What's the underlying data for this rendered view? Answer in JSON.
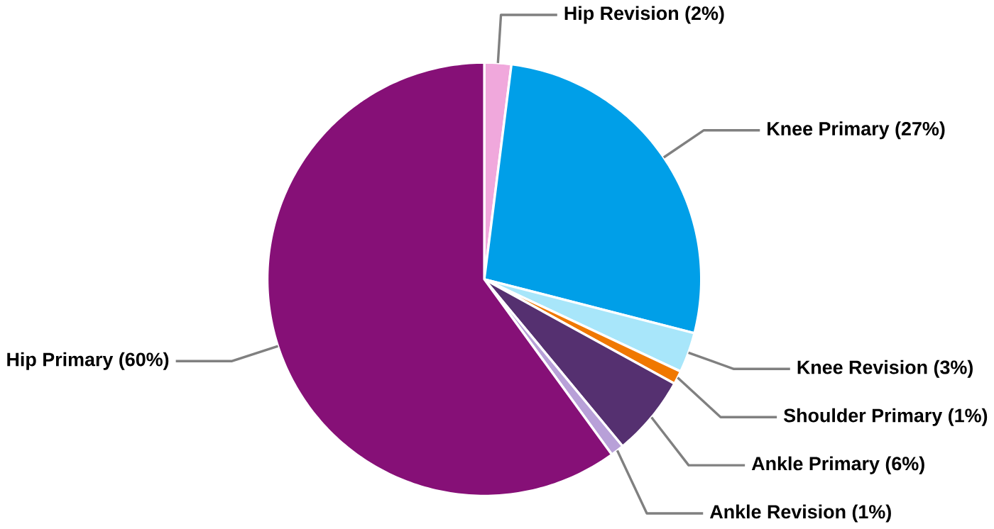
{
  "chart_data": {
    "type": "pie",
    "categories": [
      "Hip Revision (2%)",
      "Knee Primary (27%)",
      "Knee Revision (3%)",
      "Shoulder Primary (1%)",
      "Ankle Primary (6%)",
      "Ankle Revision (1%)",
      "Hip Primary (60%)"
    ],
    "values": [
      2,
      27,
      3,
      1,
      6,
      1,
      60
    ],
    "colors": [
      "#f0a8dc",
      "#009fe8",
      "#a8e6fa",
      "#f07800",
      "#553070",
      "#b8a0d8",
      "#861077"
    ]
  }
}
